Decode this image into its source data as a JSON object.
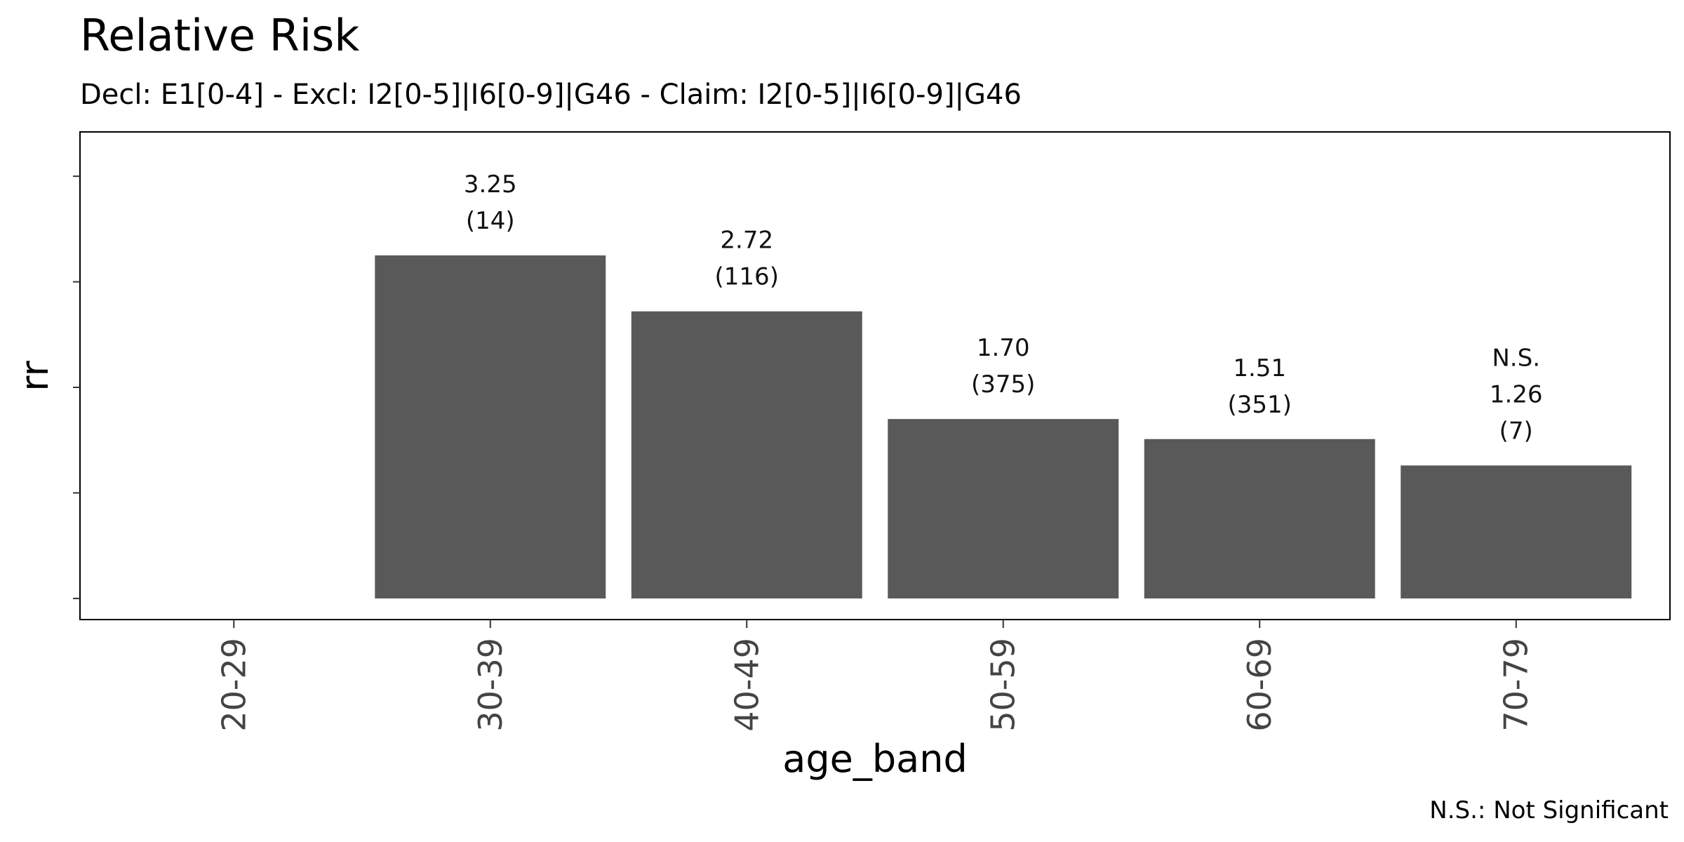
{
  "chart_data": {
    "type": "bar",
    "title": "Relative Risk",
    "subtitle": "Decl: E1[0-4] - Excl: I2[0-5]|I6[0-9]|G46 - Claim: I2[0-5]|I6[0-9]|G46",
    "xlabel": "age_band",
    "ylabel": "rr",
    "caption": "N.S.: Not Significant",
    "categories": [
      "20-29",
      "30-39",
      "40-49",
      "50-59",
      "60-69",
      "70-79"
    ],
    "values": [
      null,
      3.25,
      2.72,
      1.7,
      1.51,
      1.26
    ],
    "counts": [
      "",
      "(14)",
      "(116)",
      "(375)",
      "(351)",
      "(7)"
    ],
    "value_labels": [
      "",
      "3.25",
      "2.72",
      "1.70",
      "1.51",
      "1.26"
    ],
    "significance": [
      "",
      "",
      "",
      "",
      "",
      "N.S."
    ],
    "ylim": [
      -0.2,
      4.42
    ],
    "y_ticks": [
      0,
      1,
      2,
      3,
      4
    ],
    "bar_color": "#595959",
    "grid": false,
    "legend": "none"
  }
}
